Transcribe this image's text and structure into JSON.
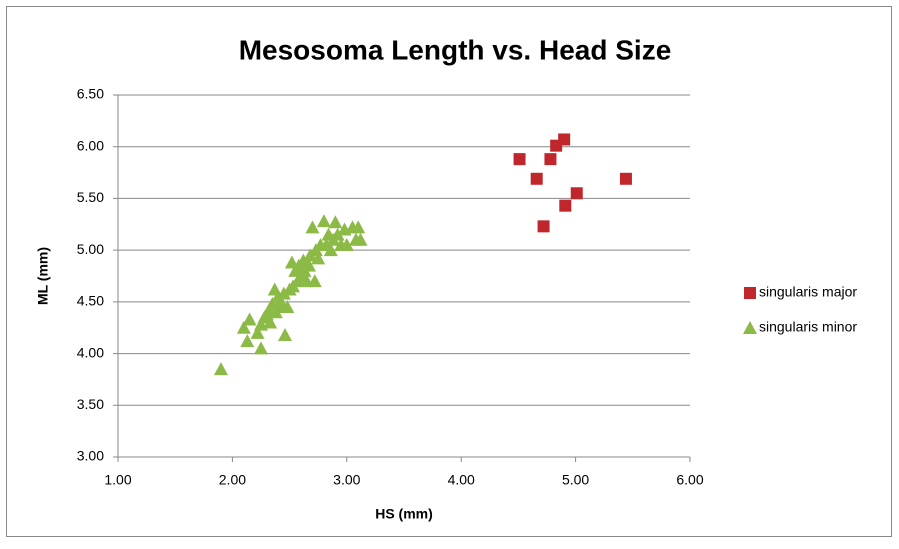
{
  "chart_data": {
    "type": "scatter",
    "title": "Mesosoma Length vs. Head Size",
    "x_label": "HS (mm)",
    "y_label": "ML (mm)",
    "xlim": [
      1,
      6
    ],
    "ylim": [
      3,
      6.5
    ],
    "xticks": [
      {
        "value": 1,
        "label": "1.00"
      },
      {
        "value": 2,
        "label": "2.00"
      },
      {
        "value": 3,
        "label": "3.00"
      },
      {
        "value": 4,
        "label": "4.00"
      },
      {
        "value": 5,
        "label": "5.00"
      },
      {
        "value": 6,
        "label": "6.00"
      }
    ],
    "yticks": [
      {
        "value": 3,
        "label": "3.00"
      },
      {
        "value": 3.5,
        "label": "3.50"
      },
      {
        "value": 4,
        "label": "4.00"
      },
      {
        "value": 4.5,
        "label": "4.50"
      },
      {
        "value": 5,
        "label": "5.00"
      },
      {
        "value": 5.5,
        "label": "5.50"
      },
      {
        "value": 6,
        "label": "6.00"
      },
      {
        "value": 6.5,
        "label": "6.50"
      }
    ],
    "grid": true,
    "legend": "right",
    "series": [
      {
        "name": "singularis major",
        "color": "#c0272d",
        "marker": "square",
        "x": [
          4.51,
          4.66,
          4.78,
          4.83,
          4.9,
          5.01,
          4.91,
          4.72,
          5.44
        ],
        "values": [
          5.88,
          5.69,
          5.88,
          6.01,
          6.07,
          5.55,
          5.43,
          5.23,
          5.69
        ]
      },
      {
        "name": "singularis minor",
        "color": "#8cba46",
        "marker": "triangle",
        "x": [
          1.9,
          2.1,
          2.13,
          2.15,
          2.22,
          2.25,
          2.25,
          2.28,
          2.3,
          2.32,
          2.33,
          2.35,
          2.37,
          2.38,
          2.4,
          2.42,
          2.43,
          2.45,
          2.46,
          2.48,
          2.5,
          2.52,
          2.53,
          2.55,
          2.57,
          2.58,
          2.6,
          2.62,
          2.63,
          2.65,
          2.67,
          2.68,
          2.7,
          2.72,
          2.73,
          2.75,
          2.77,
          2.8,
          2.82,
          2.84,
          2.86,
          2.88,
          2.9,
          2.92,
          2.95,
          2.98,
          3.0,
          3.05,
          3.08,
          3.1,
          3.12
        ],
        "values": [
          3.85,
          4.25,
          4.12,
          4.33,
          4.2,
          4.05,
          4.28,
          4.35,
          4.38,
          4.42,
          4.3,
          4.48,
          4.62,
          4.4,
          4.55,
          4.5,
          4.45,
          4.58,
          4.18,
          4.45,
          4.62,
          4.88,
          4.65,
          4.8,
          4.7,
          4.85,
          4.75,
          4.9,
          4.8,
          4.7,
          4.85,
          4.95,
          5.22,
          4.7,
          5.0,
          4.92,
          5.05,
          5.28,
          5.05,
          5.15,
          5.0,
          5.1,
          5.27,
          5.15,
          5.05,
          5.2,
          5.05,
          5.22,
          5.1,
          5.22,
          5.1
        ]
      }
    ]
  }
}
